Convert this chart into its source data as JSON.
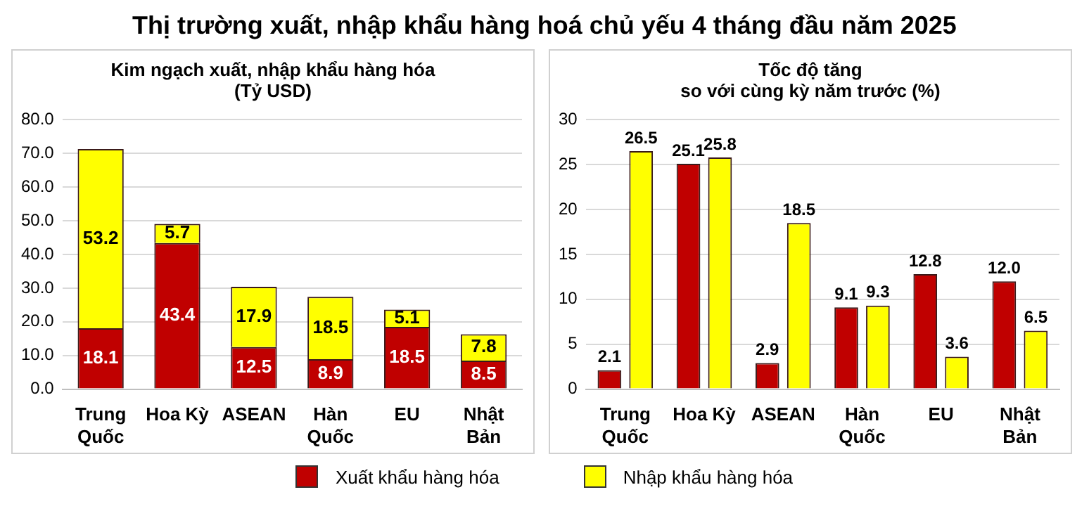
{
  "chart_data": [
    {
      "type": "bar",
      "title": "Kim ngạch xuất, nhập khẩu hàng hóa",
      "subtitle": "(Tỷ USD)",
      "annotations": [
        "Thị trường xuất, nhập khẩu hàng hoá chủ yếu 4 tháng đầu năm 2025"
      ],
      "categories": [
        "Trung Quốc",
        "Hoa Kỳ",
        "ASEAN",
        "Hàn Quốc",
        "EU",
        "Nhật Bản"
      ],
      "stacked": true,
      "data_labels": true,
      "grid": "y",
      "legend": "bottom",
      "ylim": [
        0,
        80
      ],
      "yticks": [
        {
          "value": 0,
          "label": "0.0"
        },
        {
          "value": 10,
          "label": "10.0"
        },
        {
          "value": 20,
          "label": "20.0"
        },
        {
          "value": 30,
          "label": "30.0"
        },
        {
          "value": 40,
          "label": "40.0"
        },
        {
          "value": 50,
          "label": "50.0"
        },
        {
          "value": 60,
          "label": "60.0"
        },
        {
          "value": 70,
          "label": "70.0"
        },
        {
          "value": 80,
          "label": "80.0"
        }
      ],
      "series": [
        {
          "name": "Xuất khẩu hàng hóa",
          "color": "#c00000",
          "values": [
            18.1,
            43.4,
            12.5,
            8.9,
            18.5,
            8.5
          ]
        },
        {
          "name": "Nhập khẩu hàng hóa",
          "color": "#ffff00",
          "values": [
            53.2,
            5.7,
            17.9,
            18.5,
            5.1,
            7.8
          ]
        }
      ]
    },
    {
      "type": "bar",
      "title": "Tốc độ tăng",
      "subtitle": "so với cùng kỳ năm trước (%)",
      "categories": [
        "Trung Quốc",
        "Hoa Kỳ",
        "ASEAN",
        "Hàn Quốc",
        "EU",
        "Nhật Bản"
      ],
      "data_labels": true,
      "grid": "y",
      "ylim": [
        0,
        30
      ],
      "yticks": [
        0,
        5,
        10,
        15,
        20,
        25,
        30
      ],
      "series": [
        {
          "color": "#c00000",
          "values": [
            2.1,
            25.1,
            2.9,
            9.1,
            12.8,
            12.0
          ],
          "value_labels": [
            "2.1",
            "25.1",
            "2.9",
            "9.1",
            "12.8",
            "12.0"
          ]
        },
        {
          "color": "#ffff00",
          "values": [
            26.5,
            25.8,
            18.5,
            9.3,
            3.6,
            6.5
          ]
        }
      ]
    }
  ]
}
